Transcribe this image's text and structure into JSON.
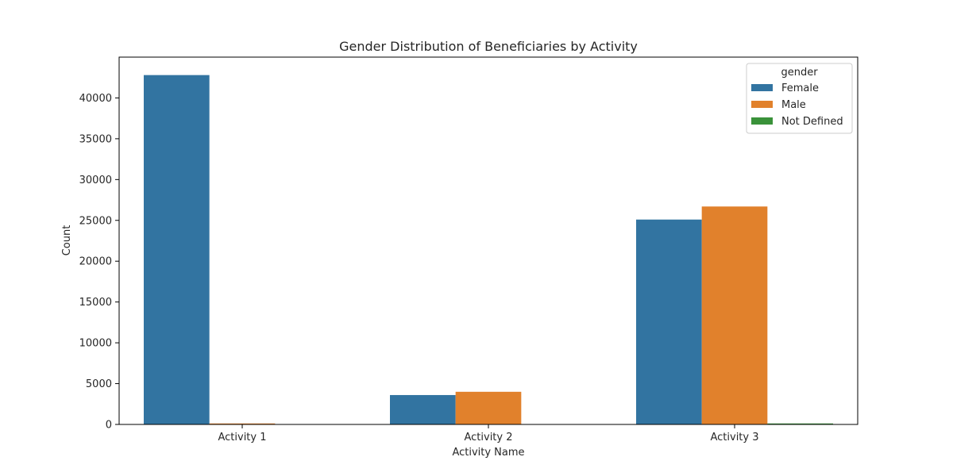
{
  "chart_data": {
    "type": "bar",
    "title": "Gender Distribution of Beneficiaries by Activity",
    "xlabel": "Activity Name",
    "ylabel": "Count",
    "categories": [
      "Activity 1",
      "Activity 2",
      "Activity 3"
    ],
    "ylim": [
      0,
      45000
    ],
    "yticks": [
      0,
      5000,
      10000,
      15000,
      20000,
      25000,
      30000,
      35000,
      40000
    ],
    "legend": {
      "title": "gender",
      "placement": "top-right"
    },
    "series": [
      {
        "name": "Female",
        "color": "#3274a1",
        "values": [
          42800,
          3600,
          25100
        ]
      },
      {
        "name": "Male",
        "color": "#e1812c",
        "values": [
          120,
          4000,
          26700
        ]
      },
      {
        "name": "Not Defined",
        "color": "#3a923a",
        "values": [
          0,
          0,
          120
        ]
      }
    ]
  }
}
